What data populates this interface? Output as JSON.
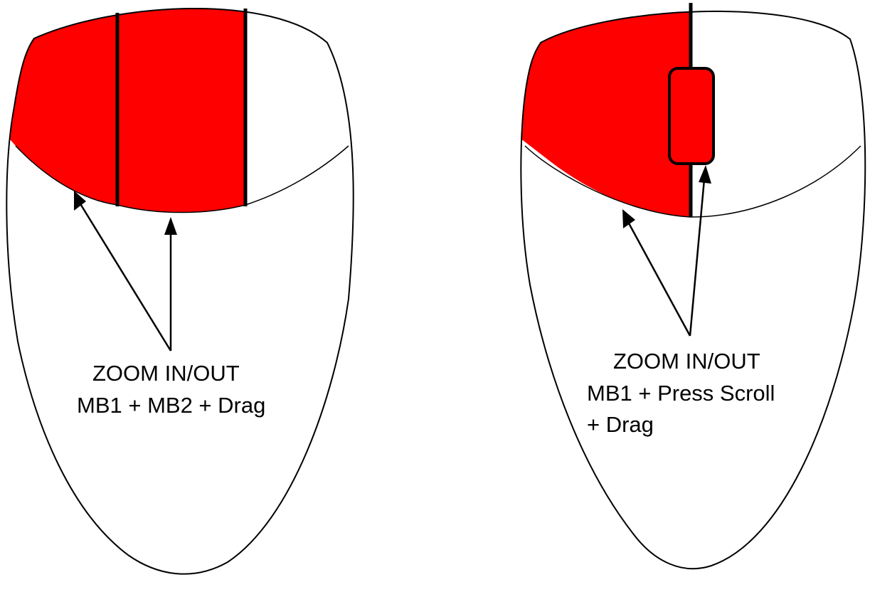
{
  "colors": {
    "highlight": "#ff0000",
    "outline": "#000000",
    "background": "#ffffff"
  },
  "left_mouse": {
    "highlighted_buttons": [
      "MB1",
      "MB2"
    ],
    "caption": {
      "line1": "ZOOM IN/OUT",
      "line2": "MB1 + MB2 + Drag"
    }
  },
  "right_mouse": {
    "highlighted_buttons": [
      "MB1",
      "Scroll"
    ],
    "caption": {
      "line1": "ZOOM IN/OUT",
      "line2": "MB1 + Press Scroll",
      "line3": "+ Drag"
    }
  }
}
